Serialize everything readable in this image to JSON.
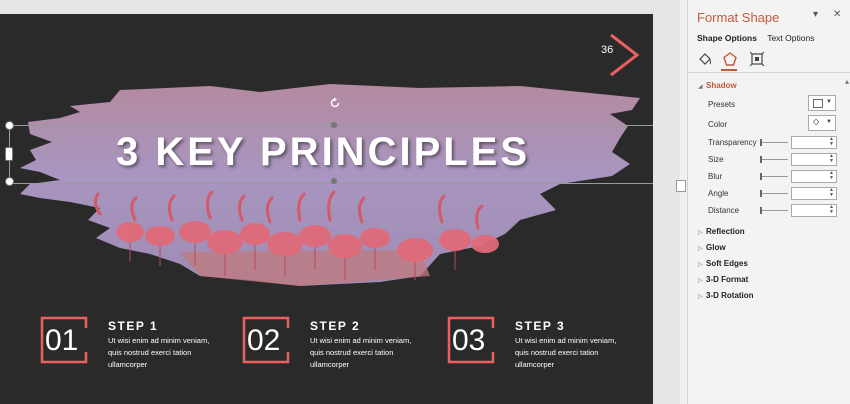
{
  "slide": {
    "number": "36",
    "title": "3 KEY PRINCIPLES",
    "steps": [
      {
        "num": "01",
        "title": "STEP 1",
        "body": "Ut wisi enim ad minim veniam, quis nostrud exerci tation ullamcorper"
      },
      {
        "num": "02",
        "title": "STEP 2",
        "body": "Ut wisi enim ad minim veniam, quis nostrud exerci tation ullamcorper"
      },
      {
        "num": "03",
        "title": "STEP 3",
        "body": "Ut wisi enim ad minim veniam, quis nostrud exerci tation ullamcorper"
      }
    ],
    "colors": {
      "background": "#2b2a2b",
      "accent": "#e8605f",
      "brush": "#a892b8"
    }
  },
  "panel": {
    "title": "Format Shape",
    "tabs": {
      "shape_options": "Shape Options",
      "text_options": "Text Options"
    },
    "icons": [
      "fill-line-icon",
      "effects-pentagon-icon",
      "size-properties-icon"
    ],
    "shadow": {
      "label": "Shadow",
      "presets": "Presets",
      "color": "Color",
      "transparency": "Transparency",
      "size": "Size",
      "blur": "Blur",
      "angle": "Angle",
      "distance": "Distance"
    },
    "sections": [
      "Reflection",
      "Glow",
      "Soft Edges",
      "3-D Format",
      "3-D Rotation"
    ]
  }
}
